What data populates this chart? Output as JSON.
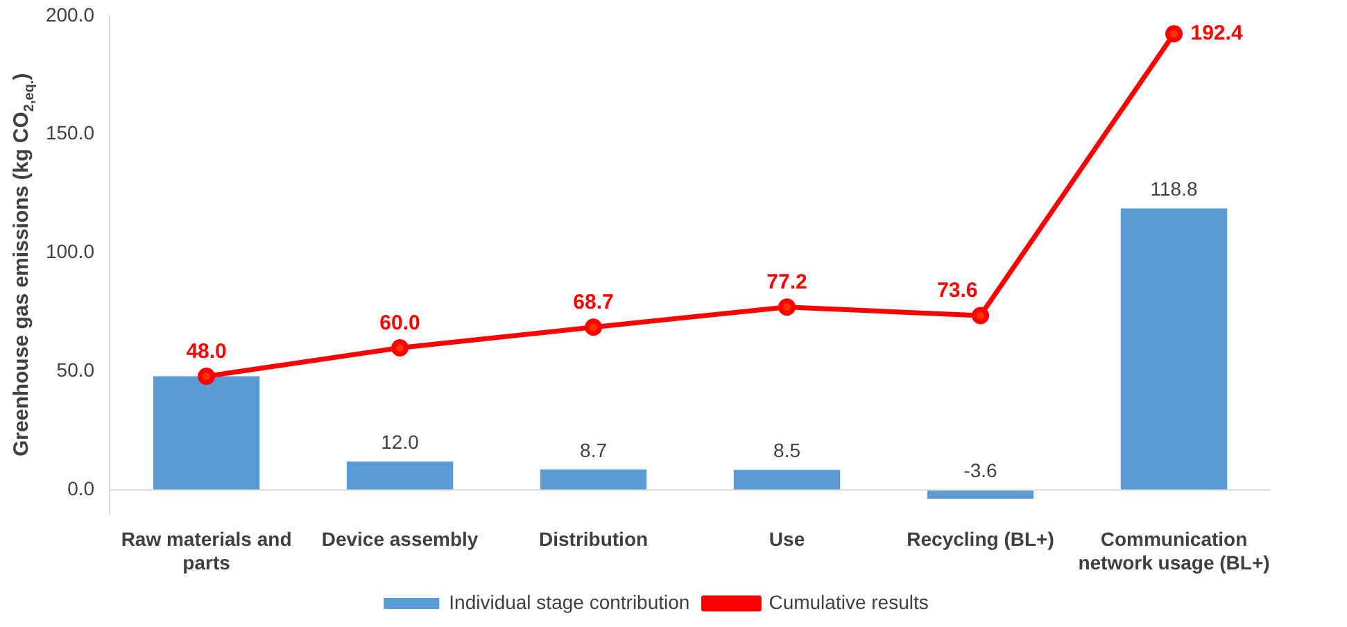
{
  "chart_data": {
    "type": "bar",
    "ylabel": "Greenhouse gas emissions (kg CO$_{2,eq.}$)",
    "categories": [
      "Raw materials and parts",
      "Device assembly",
      "Distribution",
      "Use",
      "Recycling (BL+)",
      "Communication network usage (BL+)"
    ],
    "series": [
      {
        "name": "Individual stage contribution",
        "color": "#5b9bd5",
        "values": [
          48.0,
          12.0,
          8.7,
          8.5,
          -3.6,
          118.8
        ],
        "value_labels": [
          null,
          "12.0",
          "8.7",
          "8.5",
          "-3.6",
          "118.8"
        ]
      },
      {
        "name": "Cumulative results",
        "type": "line",
        "color": "#ff0000",
        "values": [
          48.0,
          60.0,
          68.7,
          77.2,
          73.6,
          192.4
        ],
        "value_labels": [
          "48.0",
          "60.0",
          "68.7",
          "77.2",
          "73.6",
          "192.4"
        ]
      }
    ],
    "ylim": [
      -10,
      200
    ],
    "yticks": [
      {
        "value": 0,
        "label": "0.0"
      },
      {
        "value": 50,
        "label": "50.0"
      },
      {
        "value": 100,
        "label": "100.0"
      },
      {
        "value": 150,
        "label": "150.0"
      },
      {
        "value": 200,
        "label": "200.0"
      }
    ],
    "grid": false,
    "legend": "bottom",
    "marker": "circle",
    "line_style": "solid"
  }
}
